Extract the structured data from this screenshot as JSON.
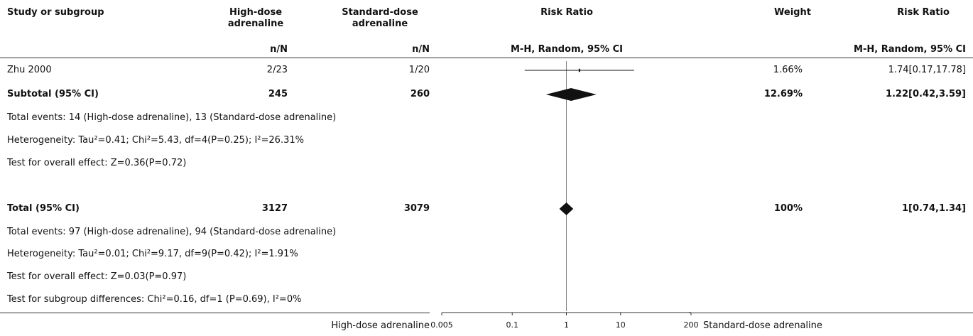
{
  "header": {
    "study": "Study or subgroup",
    "group1": "High-dose\nadrenaline",
    "group2": "Standard-dose\nadrenaline",
    "plot_title": "Risk Ratio",
    "weight": "Weight",
    "rr_title": "Risk Ratio",
    "group1_sub": "n/N",
    "group2_sub": "n/N",
    "plot_method": "M-H, Random, 95% CI",
    "rr_method": "M-H, Random, 95% CI"
  },
  "rows": {
    "zhu": {
      "study": "Zhu 2000",
      "g1": "2/23",
      "g2": "1/20",
      "weight": "1.66%",
      "rr": "1.74[0.17,17.78]"
    },
    "subtotal": {
      "study": "Subtotal (95% CI)",
      "g1": "245",
      "g2": "260",
      "weight": "12.69%",
      "rr": "1.22[0.42,3.59]"
    },
    "subtotal_events": "Total events: 14 (High-dose adrenaline), 13 (Standard-dose adrenaline)",
    "subtotal_het": "Heterogeneity: Tau²=0.41; Chi²=5.43, df=4(P=0.25); I²=26.31%",
    "subtotal_effect": "Test for overall effect: Z=0.36(P=0.72)",
    "total": {
      "study": "Total (95% CI)",
      "g1": "3127",
      "g2": "3079",
      "weight": "100%",
      "rr": "1[0.74,1.34]"
    },
    "total_events": "Total events: 97 (High-dose adrenaline), 94 (Standard-dose adrenaline)",
    "total_het": "Heterogeneity: Tau²=0.01; Chi²=9.17, df=9(P=0.42); I²=1.91%",
    "total_effect": "Test for overall effect: Z=0.03(P=0.97)",
    "subgroup_diff": "Test for subgroup differences: Chi²=0.16, df=1 (P=0.69), I²=0%"
  },
  "footer": {
    "favours_left": "High-dose adrenaline",
    "favours_right": "Standard-dose adrenaline"
  },
  "chart_data": {
    "type": "forest",
    "scale": "log",
    "xlim": [
      0.005,
      200
    ],
    "ticks": [
      0.005,
      0.1,
      1,
      10,
      200
    ],
    "tick_labels": [
      "0.005",
      "0.1",
      "1",
      "10",
      "200"
    ],
    "null_line": 1,
    "studies": [
      {
        "name": "Zhu 2000",
        "rr": 1.74,
        "lo": 0.17,
        "hi": 17.78,
        "weight": 1.66
      }
    ],
    "pooled": [
      {
        "name": "Subtotal (95% CI)",
        "rr": 1.22,
        "lo": 0.42,
        "hi": 3.59
      },
      {
        "name": "Total (95% CI)",
        "rr": 1,
        "lo": 0.74,
        "hi": 1.34
      }
    ]
  }
}
